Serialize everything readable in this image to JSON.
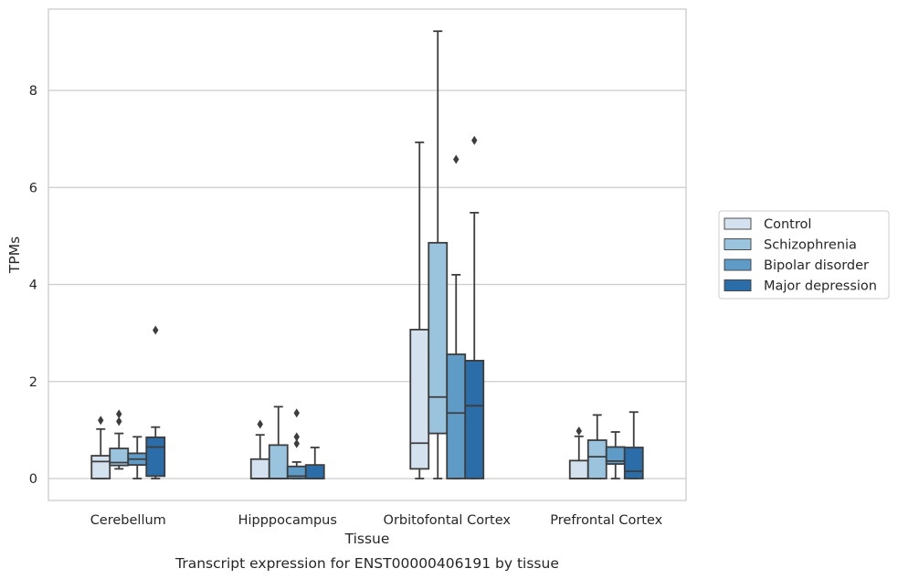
{
  "caption": "Transcript expression for ENST00000406191 by tissue",
  "chart_data": {
    "type": "box",
    "xlabel": "Tissue",
    "ylabel": "TPMs",
    "ylim": [
      -0.45,
      9.7
    ],
    "yticks": [
      0,
      2,
      4,
      6,
      8
    ],
    "grid": "horizontal",
    "legend_position": "right",
    "categories": [
      "Cerebellum",
      "Hipppocampus",
      "Orbitofontal Cortex",
      "Prefrontal Cortex"
    ],
    "series": [
      {
        "name": "Control",
        "color": "#d4e2f0",
        "boxes": [
          {
            "whislo": 0.0,
            "q1": 0.0,
            "med": 0.35,
            "q3": 0.47,
            "whishi": 1.02,
            "fliers": [
              1.2
            ]
          },
          {
            "whislo": 0.0,
            "q1": 0.0,
            "med": 0.0,
            "q3": 0.4,
            "whishi": 0.9,
            "fliers": [
              1.12
            ]
          },
          {
            "whislo": 0.0,
            "q1": 0.2,
            "med": 0.73,
            "q3": 3.07,
            "whishi": 6.93,
            "fliers": []
          },
          {
            "whislo": 0.0,
            "q1": 0.0,
            "med": 0.0,
            "q3": 0.37,
            "whishi": 0.87,
            "fliers": [
              0.98
            ]
          }
        ]
      },
      {
        "name": "Schizophrenia",
        "color": "#9ac4de",
        "boxes": [
          {
            "whislo": 0.2,
            "q1": 0.27,
            "med": 0.33,
            "q3": 0.62,
            "whishi": 0.93,
            "fliers": [
              1.18,
              1.33
            ]
          },
          {
            "whislo": 0.0,
            "q1": 0.0,
            "med": 0.0,
            "q3": 0.69,
            "whishi": 1.48,
            "fliers": []
          },
          {
            "whislo": 0.0,
            "q1": 0.93,
            "med": 1.68,
            "q3": 4.86,
            "whishi": 9.22,
            "fliers": []
          },
          {
            "whislo": 0.0,
            "q1": 0.0,
            "med": 0.45,
            "q3": 0.79,
            "whishi": 1.31,
            "fliers": []
          }
        ]
      },
      {
        "name": "Bipolar disorder",
        "color": "#5e9cc7",
        "boxes": [
          {
            "whislo": 0.0,
            "q1": 0.28,
            "med": 0.4,
            "q3": 0.52,
            "whishi": 0.86,
            "fliers": []
          },
          {
            "whislo": 0.0,
            "q1": 0.0,
            "med": 0.05,
            "q3": 0.25,
            "whishi": 0.34,
            "fliers": [
              0.72,
              0.86,
              1.35
            ]
          },
          {
            "whislo": 0.0,
            "q1": 0.0,
            "med": 1.35,
            "q3": 2.56,
            "whishi": 4.2,
            "fliers": [
              6.58
            ]
          },
          {
            "whislo": 0.0,
            "q1": 0.3,
            "med": 0.36,
            "q3": 0.65,
            "whishi": 0.96,
            "fliers": []
          }
        ]
      },
      {
        "name": "Major depression",
        "color": "#2b6da9",
        "boxes": [
          {
            "whislo": 0.0,
            "q1": 0.05,
            "med": 0.65,
            "q3": 0.85,
            "whishi": 1.06,
            "fliers": [
              3.06
            ]
          },
          {
            "whislo": 0.0,
            "q1": 0.0,
            "med": 0.0,
            "q3": 0.28,
            "whishi": 0.64,
            "fliers": []
          },
          {
            "whislo": 0.0,
            "q1": 0.0,
            "med": 1.5,
            "q3": 2.43,
            "whishi": 5.48,
            "fliers": [
              6.97
            ]
          },
          {
            "whislo": 0.0,
            "q1": 0.0,
            "med": 0.15,
            "q3": 0.64,
            "whishi": 1.37,
            "fliers": []
          }
        ]
      }
    ]
  }
}
